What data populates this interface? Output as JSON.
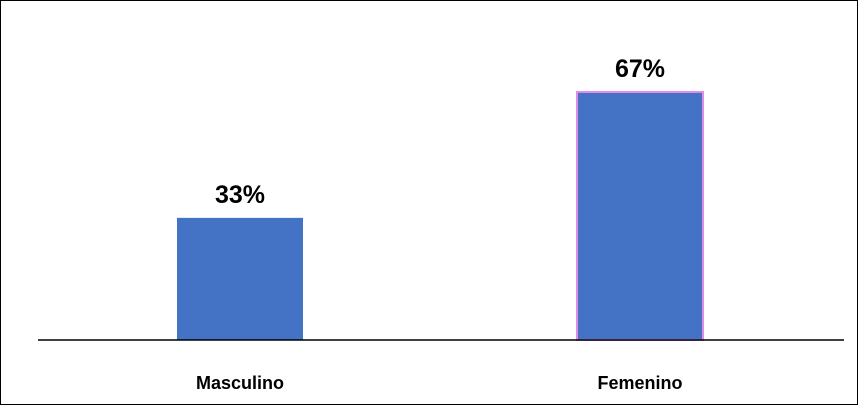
{
  "chart_data": {
    "type": "bar",
    "categories": [
      "Masculino",
      "Femenino"
    ],
    "values": [
      33,
      67
    ],
    "data_labels": [
      "33%",
      "67%"
    ],
    "unit": "%",
    "ylim": [
      0,
      80
    ],
    "grid": false,
    "legend": "none",
    "title": "",
    "xlabel": "",
    "ylabel": "",
    "colors": {
      "bar_fill": "#4472C4",
      "highlight_border": "#E58BE5",
      "axis": "#000000",
      "frame": "#000000"
    }
  }
}
